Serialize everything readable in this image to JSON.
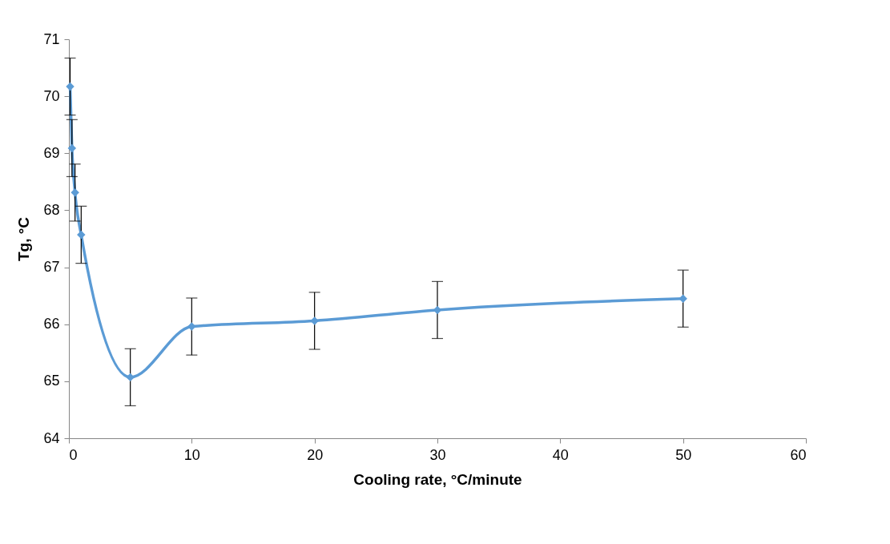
{
  "chart_data": {
    "type": "line",
    "xlabel": "Cooling rate, °C/minute",
    "ylabel": "Tg, °C",
    "x": [
      0.1,
      0.25,
      0.5,
      1,
      5,
      10,
      20,
      30,
      50
    ],
    "series": [
      {
        "color": "#5b9bd5",
        "values": [
          70.17,
          69.09,
          68.31,
          67.57,
          65.07,
          65.96,
          66.06,
          66.25,
          66.45
        ],
        "errors": [
          0.5,
          0.5,
          0.5,
          0.5,
          0.5,
          0.5,
          0.5,
          0.5,
          0.5
        ]
      }
    ],
    "xlim": [
      0,
      60
    ],
    "xticks": [
      0,
      10,
      20,
      30,
      40,
      50,
      60
    ],
    "ylim": [
      64,
      71
    ],
    "yticks": [
      64,
      65,
      66,
      67,
      68,
      69,
      70,
      71
    ],
    "grid": false,
    "legend": false,
    "marker": "diamond",
    "line_style": "solid"
  }
}
